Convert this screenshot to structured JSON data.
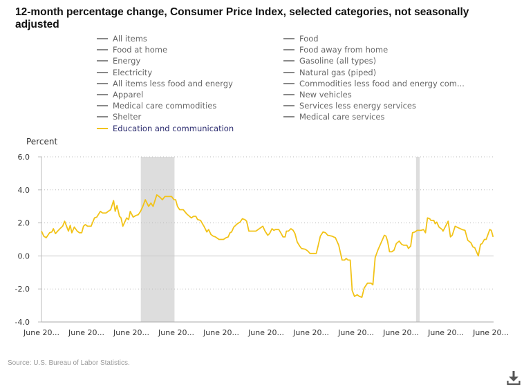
{
  "chart_data": {
    "type": "line",
    "title": "12-month percentage change, Consumer Price Index, selected categories, not seasonally adjusted",
    "ylabel": "Percent",
    "xlabel": "",
    "ylim": [
      -4.0,
      6.0
    ],
    "xlim": [
      2003.5,
      2023.62
    ],
    "yticks": [
      6.0,
      4.0,
      2.0,
      0.0,
      -2.0,
      -4.0
    ],
    "ytick_labels": [
      "6.0",
      "4.0",
      "2.0",
      "0.0",
      "-2.0",
      "-4.0"
    ],
    "xticks": [
      2003.5,
      2005.5,
      2007.5,
      2009.5,
      2011.5,
      2013.5,
      2015.5,
      2017.5,
      2019.5,
      2021.5,
      2023.5
    ],
    "xtick_labels": [
      "June 20...",
      "June 20...",
      "June 20...",
      "June 20...",
      "June 20...",
      "June 20...",
      "June 20...",
      "June 20...",
      "June 20...",
      "June 20...",
      "June 20..."
    ],
    "grid": true,
    "legend_placement": "top",
    "recessions": [
      [
        2007.92,
        2009.42
      ],
      [
        2020.17,
        2020.33
      ]
    ],
    "series": [
      {
        "name": "Education and communication",
        "color": "#f2c318",
        "active": true,
        "points": [
          [
            2003.5,
            1.5
          ],
          [
            2003.6,
            1.2
          ],
          [
            2003.71,
            1.1
          ],
          [
            2003.86,
            1.4
          ],
          [
            2003.96,
            1.45
          ],
          [
            2004.03,
            1.65
          ],
          [
            2004.12,
            1.35
          ],
          [
            2004.22,
            1.5
          ],
          [
            2004.32,
            1.65
          ],
          [
            2004.44,
            1.8
          ],
          [
            2004.53,
            2.1
          ],
          [
            2004.7,
            1.5
          ],
          [
            2004.78,
            1.85
          ],
          [
            2004.85,
            1.4
          ],
          [
            2004.96,
            1.75
          ],
          [
            2005.09,
            1.5
          ],
          [
            2005.19,
            1.4
          ],
          [
            2005.29,
            1.4
          ],
          [
            2005.37,
            1.8
          ],
          [
            2005.45,
            1.9
          ],
          [
            2005.55,
            1.8
          ],
          [
            2005.71,
            1.8
          ],
          [
            2005.86,
            2.3
          ],
          [
            2005.96,
            2.35
          ],
          [
            2006.12,
            2.7
          ],
          [
            2006.22,
            2.6
          ],
          [
            2006.37,
            2.6
          ],
          [
            2006.47,
            2.7
          ],
          [
            2006.58,
            2.8
          ],
          [
            2006.71,
            3.35
          ],
          [
            2006.78,
            2.7
          ],
          [
            2006.86,
            3.05
          ],
          [
            2006.97,
            2.4
          ],
          [
            2007.04,
            2.3
          ],
          [
            2007.12,
            1.8
          ],
          [
            2007.29,
            2.3
          ],
          [
            2007.38,
            2.2
          ],
          [
            2007.45,
            2.7
          ],
          [
            2007.58,
            2.35
          ],
          [
            2007.71,
            2.45
          ],
          [
            2007.81,
            2.5
          ],
          [
            2007.91,
            2.7
          ],
          [
            2008.01,
            3.0
          ],
          [
            2008.12,
            3.4
          ],
          [
            2008.27,
            3.0
          ],
          [
            2008.37,
            3.2
          ],
          [
            2008.47,
            3.0
          ],
          [
            2008.63,
            3.7
          ],
          [
            2008.78,
            3.55
          ],
          [
            2008.88,
            3.4
          ],
          [
            2008.99,
            3.6
          ],
          [
            2009.29,
            3.6
          ],
          [
            2009.4,
            3.4
          ],
          [
            2009.47,
            3.4
          ],
          [
            2009.55,
            3.0
          ],
          [
            2009.65,
            2.8
          ],
          [
            2009.81,
            2.8
          ],
          [
            2009.96,
            2.55
          ],
          [
            2010.17,
            2.3
          ],
          [
            2010.27,
            2.4
          ],
          [
            2010.37,
            2.4
          ],
          [
            2010.45,
            2.2
          ],
          [
            2010.58,
            2.15
          ],
          [
            2010.73,
            1.8
          ],
          [
            2010.86,
            1.45
          ],
          [
            2010.94,
            1.6
          ],
          [
            2011.04,
            1.3
          ],
          [
            2011.14,
            1.2
          ],
          [
            2011.24,
            1.15
          ],
          [
            2011.4,
            1.0
          ],
          [
            2011.6,
            1.0
          ],
          [
            2011.71,
            1.1
          ],
          [
            2011.81,
            1.15
          ],
          [
            2011.89,
            1.4
          ],
          [
            2011.96,
            1.45
          ],
          [
            2012.06,
            1.75
          ],
          [
            2012.22,
            1.95
          ],
          [
            2012.34,
            2.05
          ],
          [
            2012.44,
            2.25
          ],
          [
            2012.55,
            2.2
          ],
          [
            2012.63,
            2.1
          ],
          [
            2012.73,
            1.5
          ],
          [
            2013.04,
            1.5
          ],
          [
            2013.35,
            1.8
          ],
          [
            2013.45,
            1.5
          ],
          [
            2013.57,
            1.25
          ],
          [
            2013.65,
            1.35
          ],
          [
            2013.76,
            1.65
          ],
          [
            2013.84,
            1.55
          ],
          [
            2013.91,
            1.6
          ],
          [
            2014.06,
            1.6
          ],
          [
            2014.17,
            1.35
          ],
          [
            2014.25,
            1.15
          ],
          [
            2014.34,
            1.15
          ],
          [
            2014.4,
            1.5
          ],
          [
            2014.49,
            1.5
          ],
          [
            2014.6,
            1.65
          ],
          [
            2014.7,
            1.55
          ],
          [
            2014.78,
            1.35
          ],
          [
            2014.88,
            0.85
          ],
          [
            2014.99,
            0.6
          ],
          [
            2015.07,
            0.45
          ],
          [
            2015.24,
            0.4
          ],
          [
            2015.35,
            0.3
          ],
          [
            2015.45,
            0.15
          ],
          [
            2015.73,
            0.15
          ],
          [
            2015.81,
            0.6
          ],
          [
            2015.91,
            1.2
          ],
          [
            2016.03,
            1.45
          ],
          [
            2016.14,
            1.4
          ],
          [
            2016.24,
            1.25
          ],
          [
            2016.42,
            1.2
          ],
          [
            2016.58,
            1.1
          ],
          [
            2016.73,
            0.65
          ],
          [
            2016.88,
            -0.25
          ],
          [
            2016.99,
            -0.25
          ],
          [
            2017.06,
            -0.15
          ],
          [
            2017.14,
            -0.25
          ],
          [
            2017.24,
            -0.25
          ],
          [
            2017.33,
            -2.1
          ],
          [
            2017.43,
            -2.45
          ],
          [
            2017.55,
            -2.35
          ],
          [
            2017.65,
            -2.45
          ],
          [
            2017.76,
            -2.5
          ],
          [
            2017.86,
            -1.95
          ],
          [
            2018.01,
            -1.65
          ],
          [
            2018.17,
            -1.65
          ],
          [
            2018.25,
            -1.75
          ],
          [
            2018.35,
            -0.1
          ],
          [
            2018.47,
            0.35
          ],
          [
            2018.63,
            0.85
          ],
          [
            2018.76,
            1.25
          ],
          [
            2018.83,
            1.2
          ],
          [
            2018.9,
            0.9
          ],
          [
            2018.99,
            0.25
          ],
          [
            2019.09,
            0.25
          ],
          [
            2019.19,
            0.35
          ],
          [
            2019.29,
            0.75
          ],
          [
            2019.42,
            0.9
          ],
          [
            2019.53,
            0.7
          ],
          [
            2019.62,
            0.65
          ],
          [
            2019.76,
            0.65
          ],
          [
            2019.83,
            0.45
          ],
          [
            2019.93,
            0.6
          ],
          [
            2020.01,
            1.4
          ],
          [
            2020.12,
            1.45
          ],
          [
            2020.22,
            1.55
          ],
          [
            2020.4,
            1.55
          ],
          [
            2020.5,
            1.6
          ],
          [
            2020.59,
            1.4
          ],
          [
            2020.68,
            2.3
          ],
          [
            2020.78,
            2.25
          ],
          [
            2020.83,
            2.15
          ],
          [
            2020.96,
            2.15
          ],
          [
            2021.02,
            1.95
          ],
          [
            2021.09,
            2.05
          ],
          [
            2021.19,
            1.75
          ],
          [
            2021.33,
            1.6
          ],
          [
            2021.37,
            1.5
          ],
          [
            2021.6,
            2.1
          ],
          [
            2021.7,
            1.15
          ],
          [
            2021.78,
            1.25
          ],
          [
            2021.91,
            1.8
          ],
          [
            2022.06,
            1.7
          ],
          [
            2022.22,
            1.6
          ],
          [
            2022.35,
            1.55
          ],
          [
            2022.47,
            0.95
          ],
          [
            2022.61,
            0.8
          ],
          [
            2022.7,
            0.55
          ],
          [
            2022.78,
            0.5
          ],
          [
            2022.94,
            0.0
          ],
          [
            2023.04,
            0.7
          ],
          [
            2023.11,
            0.75
          ],
          [
            2023.21,
            1.0
          ],
          [
            2023.29,
            1.0
          ],
          [
            2023.45,
            1.6
          ],
          [
            2023.52,
            1.55
          ],
          [
            2023.6,
            1.15
          ]
        ]
      }
    ]
  },
  "legend": {
    "left": [
      {
        "label": "All items"
      },
      {
        "label": "Food at home"
      },
      {
        "label": "Energy"
      },
      {
        "label": "Electricity"
      },
      {
        "label": "All items less food and energy"
      },
      {
        "label": "Apparel"
      },
      {
        "label": "Medical care commodities"
      },
      {
        "label": "Shelter"
      },
      {
        "label": "Education and communication",
        "active": true
      }
    ],
    "right": [
      {
        "label": "Food"
      },
      {
        "label": "Food away from home"
      },
      {
        "label": "Gasoline (all types)"
      },
      {
        "label": "Natural gas (piped)"
      },
      {
        "label": "Commodities less food and energy com..."
      },
      {
        "label": "New vehicles"
      },
      {
        "label": "Services less energy services"
      },
      {
        "label": "Medical care services"
      }
    ]
  },
  "source": "Source: U.S. Bureau of Labor Statistics.",
  "icons": {
    "download": "download-icon"
  },
  "colors": {
    "active_series": "#f2c318",
    "inactive": "#888888",
    "recession": "#dddddd",
    "active_legend_text": "#2a2a6e"
  }
}
